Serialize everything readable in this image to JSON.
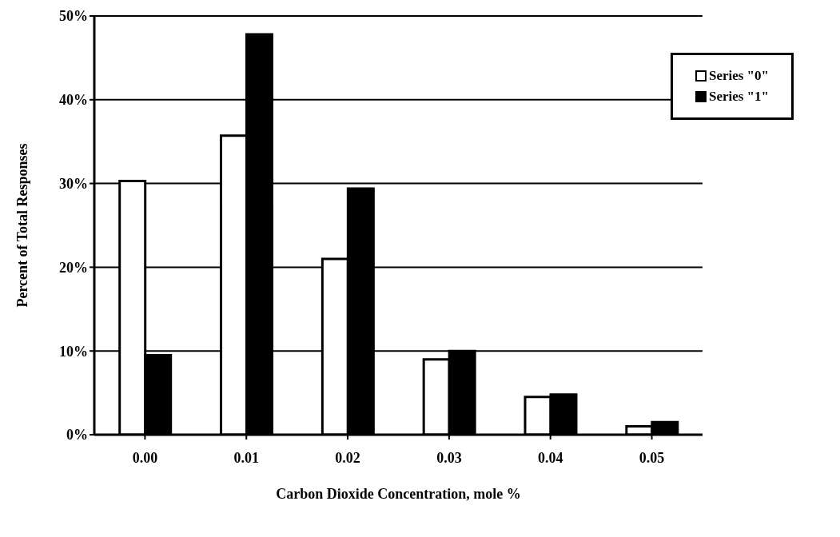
{
  "chart_data": {
    "type": "bar",
    "xlabel": "Carbon Dioxide Concentration, mole %",
    "ylabel": "Percent of Total Responses",
    "categories": [
      "0.00",
      "0.01",
      "0.02",
      "0.03",
      "0.04",
      "0.05"
    ],
    "series": [
      {
        "name": "Series \"0\"",
        "color": "#ffffff",
        "values": [
          30.3,
          35.7,
          21.0,
          9.0,
          4.5,
          1.0
        ]
      },
      {
        "name": "Series \"1\"",
        "color": "#000000",
        "values": [
          9.5,
          47.8,
          29.4,
          10.0,
          4.8,
          1.5
        ]
      }
    ],
    "ylim": [
      0,
      50
    ],
    "yticks": [
      {
        "value": 0,
        "label": "0%"
      },
      {
        "value": 10,
        "label": "10%"
      },
      {
        "value": 20,
        "label": "20%"
      },
      {
        "value": 30,
        "label": "30%"
      },
      {
        "value": 40,
        "label": "40%"
      },
      {
        "value": 50,
        "label": "50%"
      }
    ],
    "grid": "y",
    "legend": "top right"
  }
}
